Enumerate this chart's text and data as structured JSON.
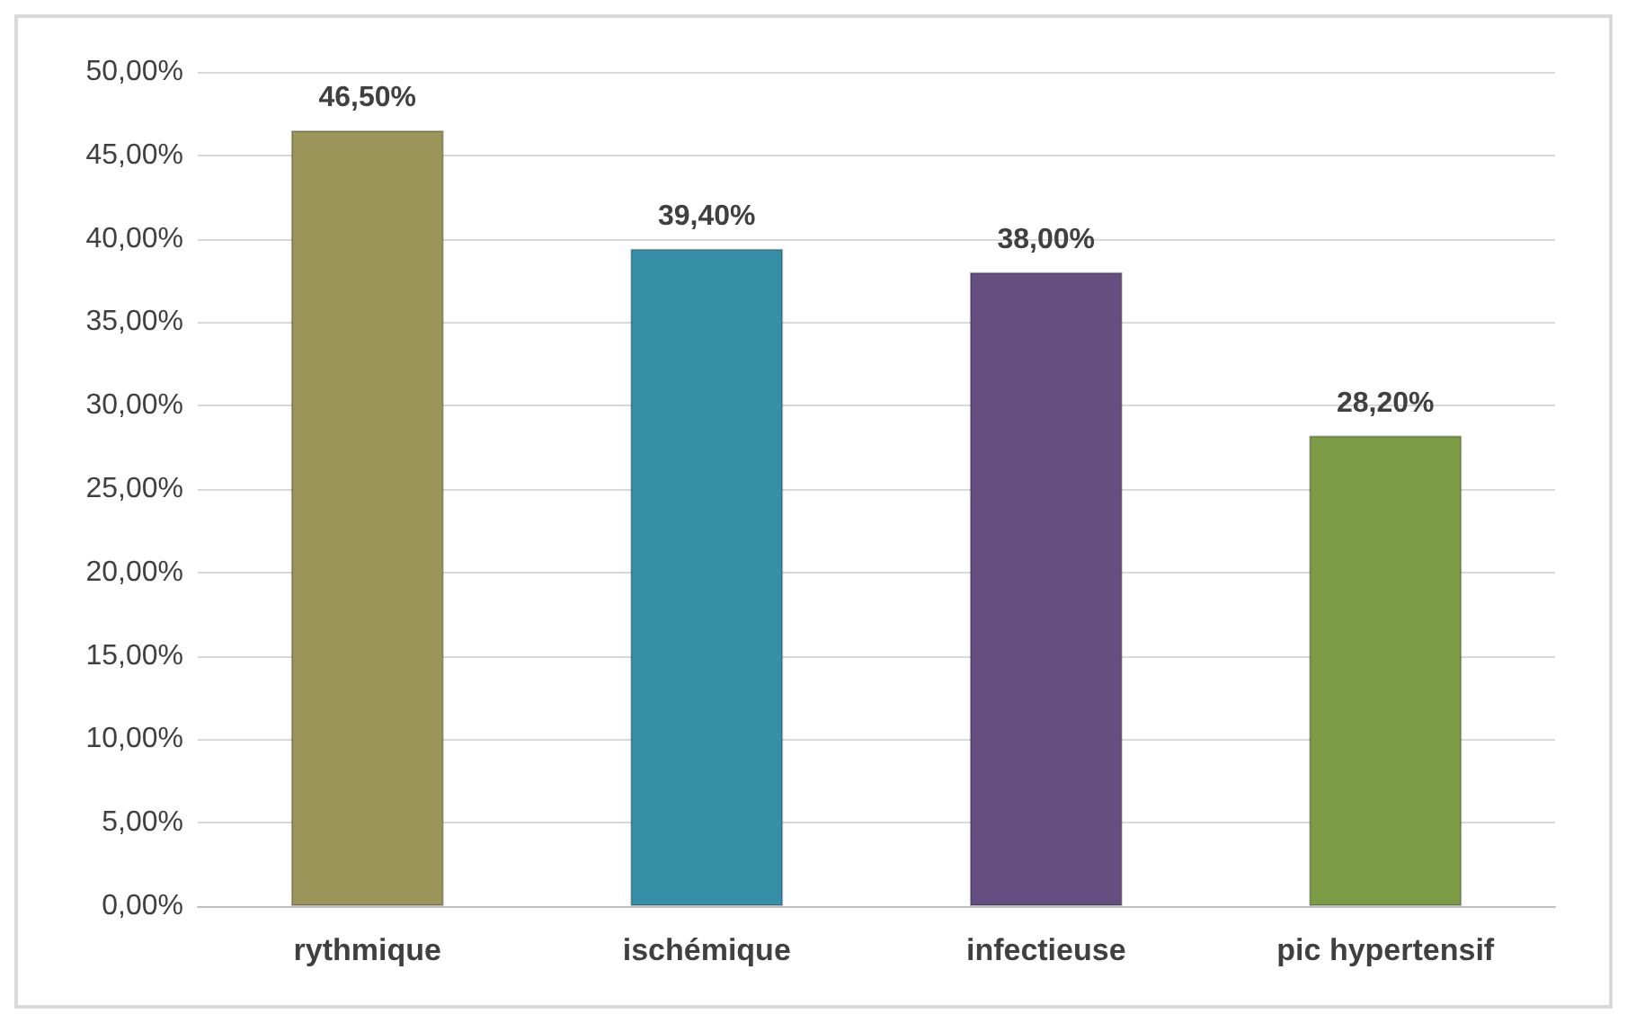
{
  "chart_data": {
    "type": "bar",
    "categories": [
      "rythmique",
      "ischémique",
      "infectieuse",
      "pic hypertensif"
    ],
    "values": [
      46.5,
      39.4,
      38.0,
      28.2
    ],
    "colors": [
      "#9c955a",
      "#368ea7",
      "#654f81",
      "#7b9c44"
    ],
    "value_labels": [
      "46,50%",
      "39,40%",
      "38,00%",
      "28,20%"
    ],
    "ylim": [
      0,
      50
    ],
    "yticks": [
      {
        "value": 0,
        "label": "0,00%"
      },
      {
        "value": 5,
        "label": "5,00%"
      },
      {
        "value": 10,
        "label": "10,00%"
      },
      {
        "value": 15,
        "label": "15,00%"
      },
      {
        "value": 20,
        "label": "20,00%"
      },
      {
        "value": 25,
        "label": "25,00%"
      },
      {
        "value": 30,
        "label": "30,00%"
      },
      {
        "value": 35,
        "label": "35,00%"
      },
      {
        "value": 40,
        "label": "40,00%"
      },
      {
        "value": 45,
        "label": "45,00%"
      },
      {
        "value": 50,
        "label": "50,00%"
      }
    ],
    "grid": "y"
  }
}
